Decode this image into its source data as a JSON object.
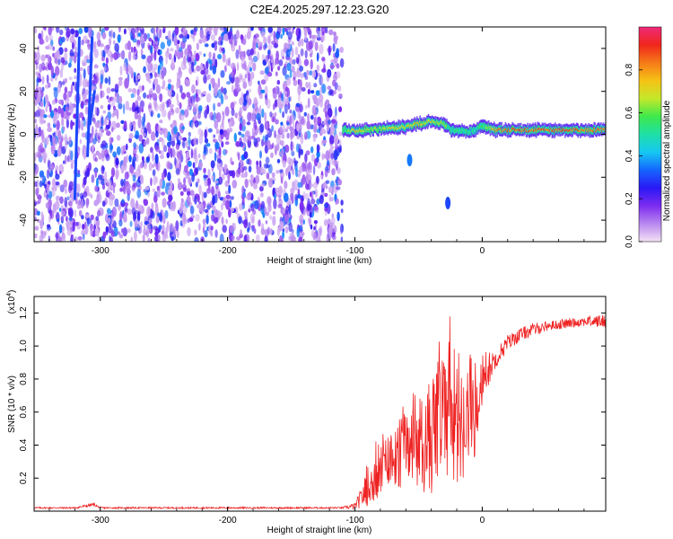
{
  "figure": {
    "title": "C2E4.2025.297.12.23.G20"
  },
  "chart_data": [
    {
      "type": "heatmap",
      "title": "C2E4.2025.297.12.23.G20",
      "xlabel": "Height of straight line (km)",
      "ylabel": "Frequency (Hz)",
      "xlim": [
        -352,
        97
      ],
      "ylim": [
        -50,
        50
      ],
      "xticks": [
        -300,
        -200,
        -100,
        0
      ],
      "yticks": [
        -40,
        -20,
        0,
        20,
        40
      ],
      "xtick_labels": [
        "-300",
        "-200",
        "-100",
        "0"
      ],
      "ytick_labels": [
        "-40",
        "-20",
        "0",
        "20",
        "40"
      ],
      "colorbar": {
        "label": "Normalized spectral amplitude",
        "range": [
          0.0,
          1.0
        ],
        "ticks": [
          0.0,
          0.2,
          0.4,
          0.6,
          0.8
        ],
        "tick_labels": [
          "0.0",
          "0.2",
          "0.4",
          "0.6",
          "0.8"
        ],
        "colormap": [
          "#f4e2f5",
          "#b988ef",
          "#7d2cf0",
          "#2a18f5",
          "#1565ff",
          "#16c8f2",
          "#1ee0a6",
          "#3fe84b",
          "#c4e82a",
          "#f5c215",
          "#f57a18",
          "#f0261c",
          "#ef2a7a"
        ]
      },
      "noise_region": {
        "x": [
          -352,
          -110
        ],
        "y": [
          -50,
          50
        ],
        "amplitude": "0.05-0.3"
      },
      "signal_trace": {
        "x": [
          -110,
          -100,
          -90,
          -80,
          -70,
          -60,
          -50,
          -40,
          -30,
          -25,
          -20,
          -10,
          0,
          10,
          30,
          50,
          70,
          97
        ],
        "y": [
          2,
          1.5,
          2,
          2.5,
          3,
          3.5,
          5,
          6,
          5,
          2,
          1.5,
          1,
          4,
          2,
          2,
          2,
          2,
          2
        ],
        "amplitude": [
          0.6,
          0.8,
          0.7,
          0.7,
          0.8,
          0.75,
          0.8,
          0.75,
          0.7,
          0.6,
          0.6,
          0.55,
          0.6,
          0.9,
          0.95,
          0.95,
          0.95,
          0.9
        ]
      },
      "weak_features": {
        "x": [
          -57,
          -27
        ],
        "y": [
          -12,
          -32
        ],
        "amplitude": [
          0.35,
          0.3
        ]
      },
      "streaks": {
        "x": [
          -320,
          -310,
          -308
        ],
        "y0": [
          -30,
          -10,
          5
        ],
        "y1": [
          45,
          45,
          20
        ]
      }
    },
    {
      "type": "line",
      "xlabel": "Height of straight line (km)",
      "ylabel": "SNR (10 * v/v)",
      "yscale_label": "(x10",
      "yscale_exp": "4",
      "yscale_close": ")",
      "xlim": [
        -352,
        97
      ],
      "ylim": [
        0.0,
        1.3
      ],
      "xticks": [
        -300,
        -200,
        -100,
        0
      ],
      "yticks": [
        0.2,
        0.4,
        0.6,
        0.8,
        1.0,
        1.2
      ],
      "xtick_labels": [
        "-300",
        "-200",
        "-100",
        "0"
      ],
      "ytick_labels": [
        "0.2",
        "0.4",
        "0.6",
        "0.8",
        "1.0",
        "1.2"
      ],
      "color": "#ee2222",
      "series": [
        {
          "name": "SNR",
          "x": [
            -352,
            -320,
            -305,
            -300,
            -280,
            -250,
            -200,
            -150,
            -110,
            -100,
            -95,
            -90,
            -80,
            -70,
            -60,
            -50,
            -40,
            -30,
            -20,
            -15,
            -10,
            -5,
            0,
            10,
            20,
            30,
            40,
            50,
            60,
            70,
            80,
            90,
            97
          ],
          "y": [
            0.02,
            0.02,
            0.04,
            0.02,
            0.02,
            0.02,
            0.02,
            0.02,
            0.02,
            0.03,
            0.08,
            0.15,
            0.22,
            0.3,
            0.35,
            0.4,
            0.45,
            0.55,
            0.6,
            0.55,
            0.6,
            0.62,
            0.8,
            0.92,
            1.02,
            1.07,
            1.1,
            1.12,
            1.13,
            1.14,
            1.15,
            1.15,
            1.15
          ],
          "spread": [
            0.005,
            0.005,
            0.01,
            0.005,
            0.005,
            0.005,
            0.005,
            0.005,
            0.005,
            0.02,
            0.06,
            0.12,
            0.18,
            0.22,
            0.26,
            0.3,
            0.35,
            0.38,
            0.42,
            0.4,
            0.35,
            0.3,
            0.15,
            0.06,
            0.05,
            0.04,
            0.04,
            0.03,
            0.03,
            0.03,
            0.03,
            0.04,
            0.04
          ]
        }
      ]
    }
  ]
}
